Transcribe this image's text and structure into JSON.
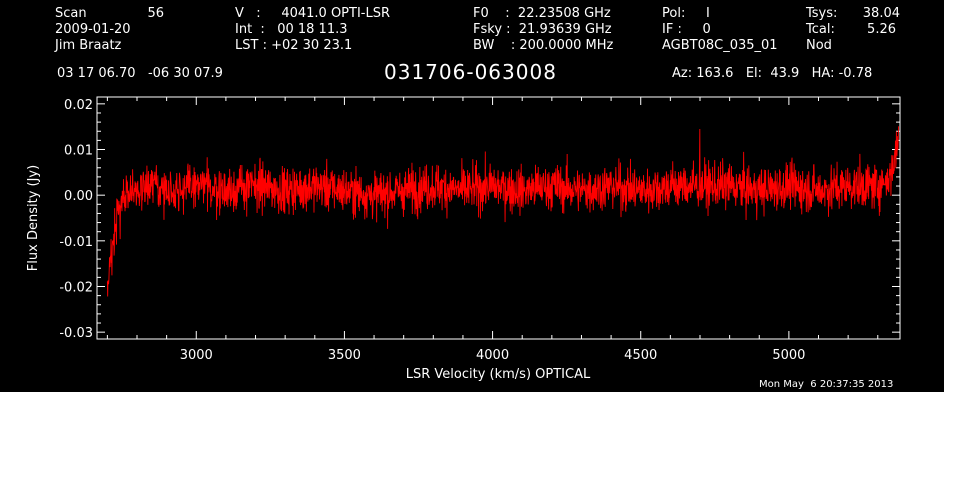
{
  "header": {
    "scan_label": "Scan",
    "scan_value": "56",
    "date": "2009-01-20",
    "observer": "Jim Braatz",
    "velocity": "V   :     4041.0 OPTI-LSR",
    "int_time": "Int  :   00 18 11.3",
    "lst": "LST : +02 30 23.1",
    "f0": "F0    :  22.23508 GHz",
    "fsky": "Fsky :  21.93639 GHz",
    "bw": "BW    : 200.0000 MHz",
    "pol": "Pol:     I",
    "if": "IF :     0",
    "project": "AGBT08C_035_01",
    "tsys_label": "Tsys:",
    "tsys_value": "38.04",
    "tcal_label": "Tcal:",
    "tcal_value": "5.26",
    "mode": "Nod",
    "coords": "03 17 06.70   -06 30 07.9",
    "source": "031706-063008",
    "az_el_ha": "Az: 163.6   El:  43.9   HA: -0.78",
    "timestamp": "Mon May  6 20:37:35 2013"
  },
  "chart_data": {
    "type": "line",
    "xlabel": "LSR Velocity (km/s) OPTICAL",
    "ylabel": "Flux Density (Jy)",
    "xlim": [
      2665,
      5375
    ],
    "ylim": [
      -0.0315,
      0.0215
    ],
    "x_ticks": [
      3000,
      3500,
      4000,
      4500,
      5000
    ],
    "x_tick_labels": [
      "3000",
      "3500",
      "4000",
      "4500",
      "5000"
    ],
    "y_ticks": [
      0.02,
      0.01,
      0.0,
      -0.01,
      -0.02,
      -0.03
    ],
    "y_tick_labels": [
      "0.02",
      "0.01",
      "0.00",
      "-0.01",
      "-0.02",
      "-0.03"
    ],
    "grid": false,
    "series": [
      {
        "color": "#ff0000",
        "x": [
          2700,
          2710,
          2720,
          2730,
          2740,
          2750,
          2760,
          2780,
          2800,
          2850,
          2900,
          3000,
          3100,
          3200,
          3300,
          3400,
          3500,
          3600,
          3700,
          3800,
          3900,
          4000,
          4100,
          4200,
          4300,
          4400,
          4500,
          4600,
          4700,
          4800,
          4900,
          5000,
          5100,
          5200,
          5300,
          5320,
          5340,
          5350,
          5360,
          5370
        ],
        "y": [
          -0.022,
          -0.014,
          -0.009,
          -0.005,
          -0.003,
          -0.001,
          0.0,
          0.001,
          0.001,
          0.002,
          0.001,
          0.002,
          0.001,
          0.002,
          0.001,
          0.002,
          0.001,
          0.0,
          0.001,
          0.002,
          0.001,
          0.002,
          0.001,
          0.002,
          0.001,
          0.002,
          0.001,
          0.002,
          0.002,
          0.002,
          0.001,
          0.002,
          0.001,
          0.002,
          0.002,
          0.003,
          0.004,
          0.006,
          0.009,
          0.012
        ],
        "noise_rms": 0.0035,
        "x_spike": 4700,
        "y_spike": 0.0145
      }
    ]
  }
}
